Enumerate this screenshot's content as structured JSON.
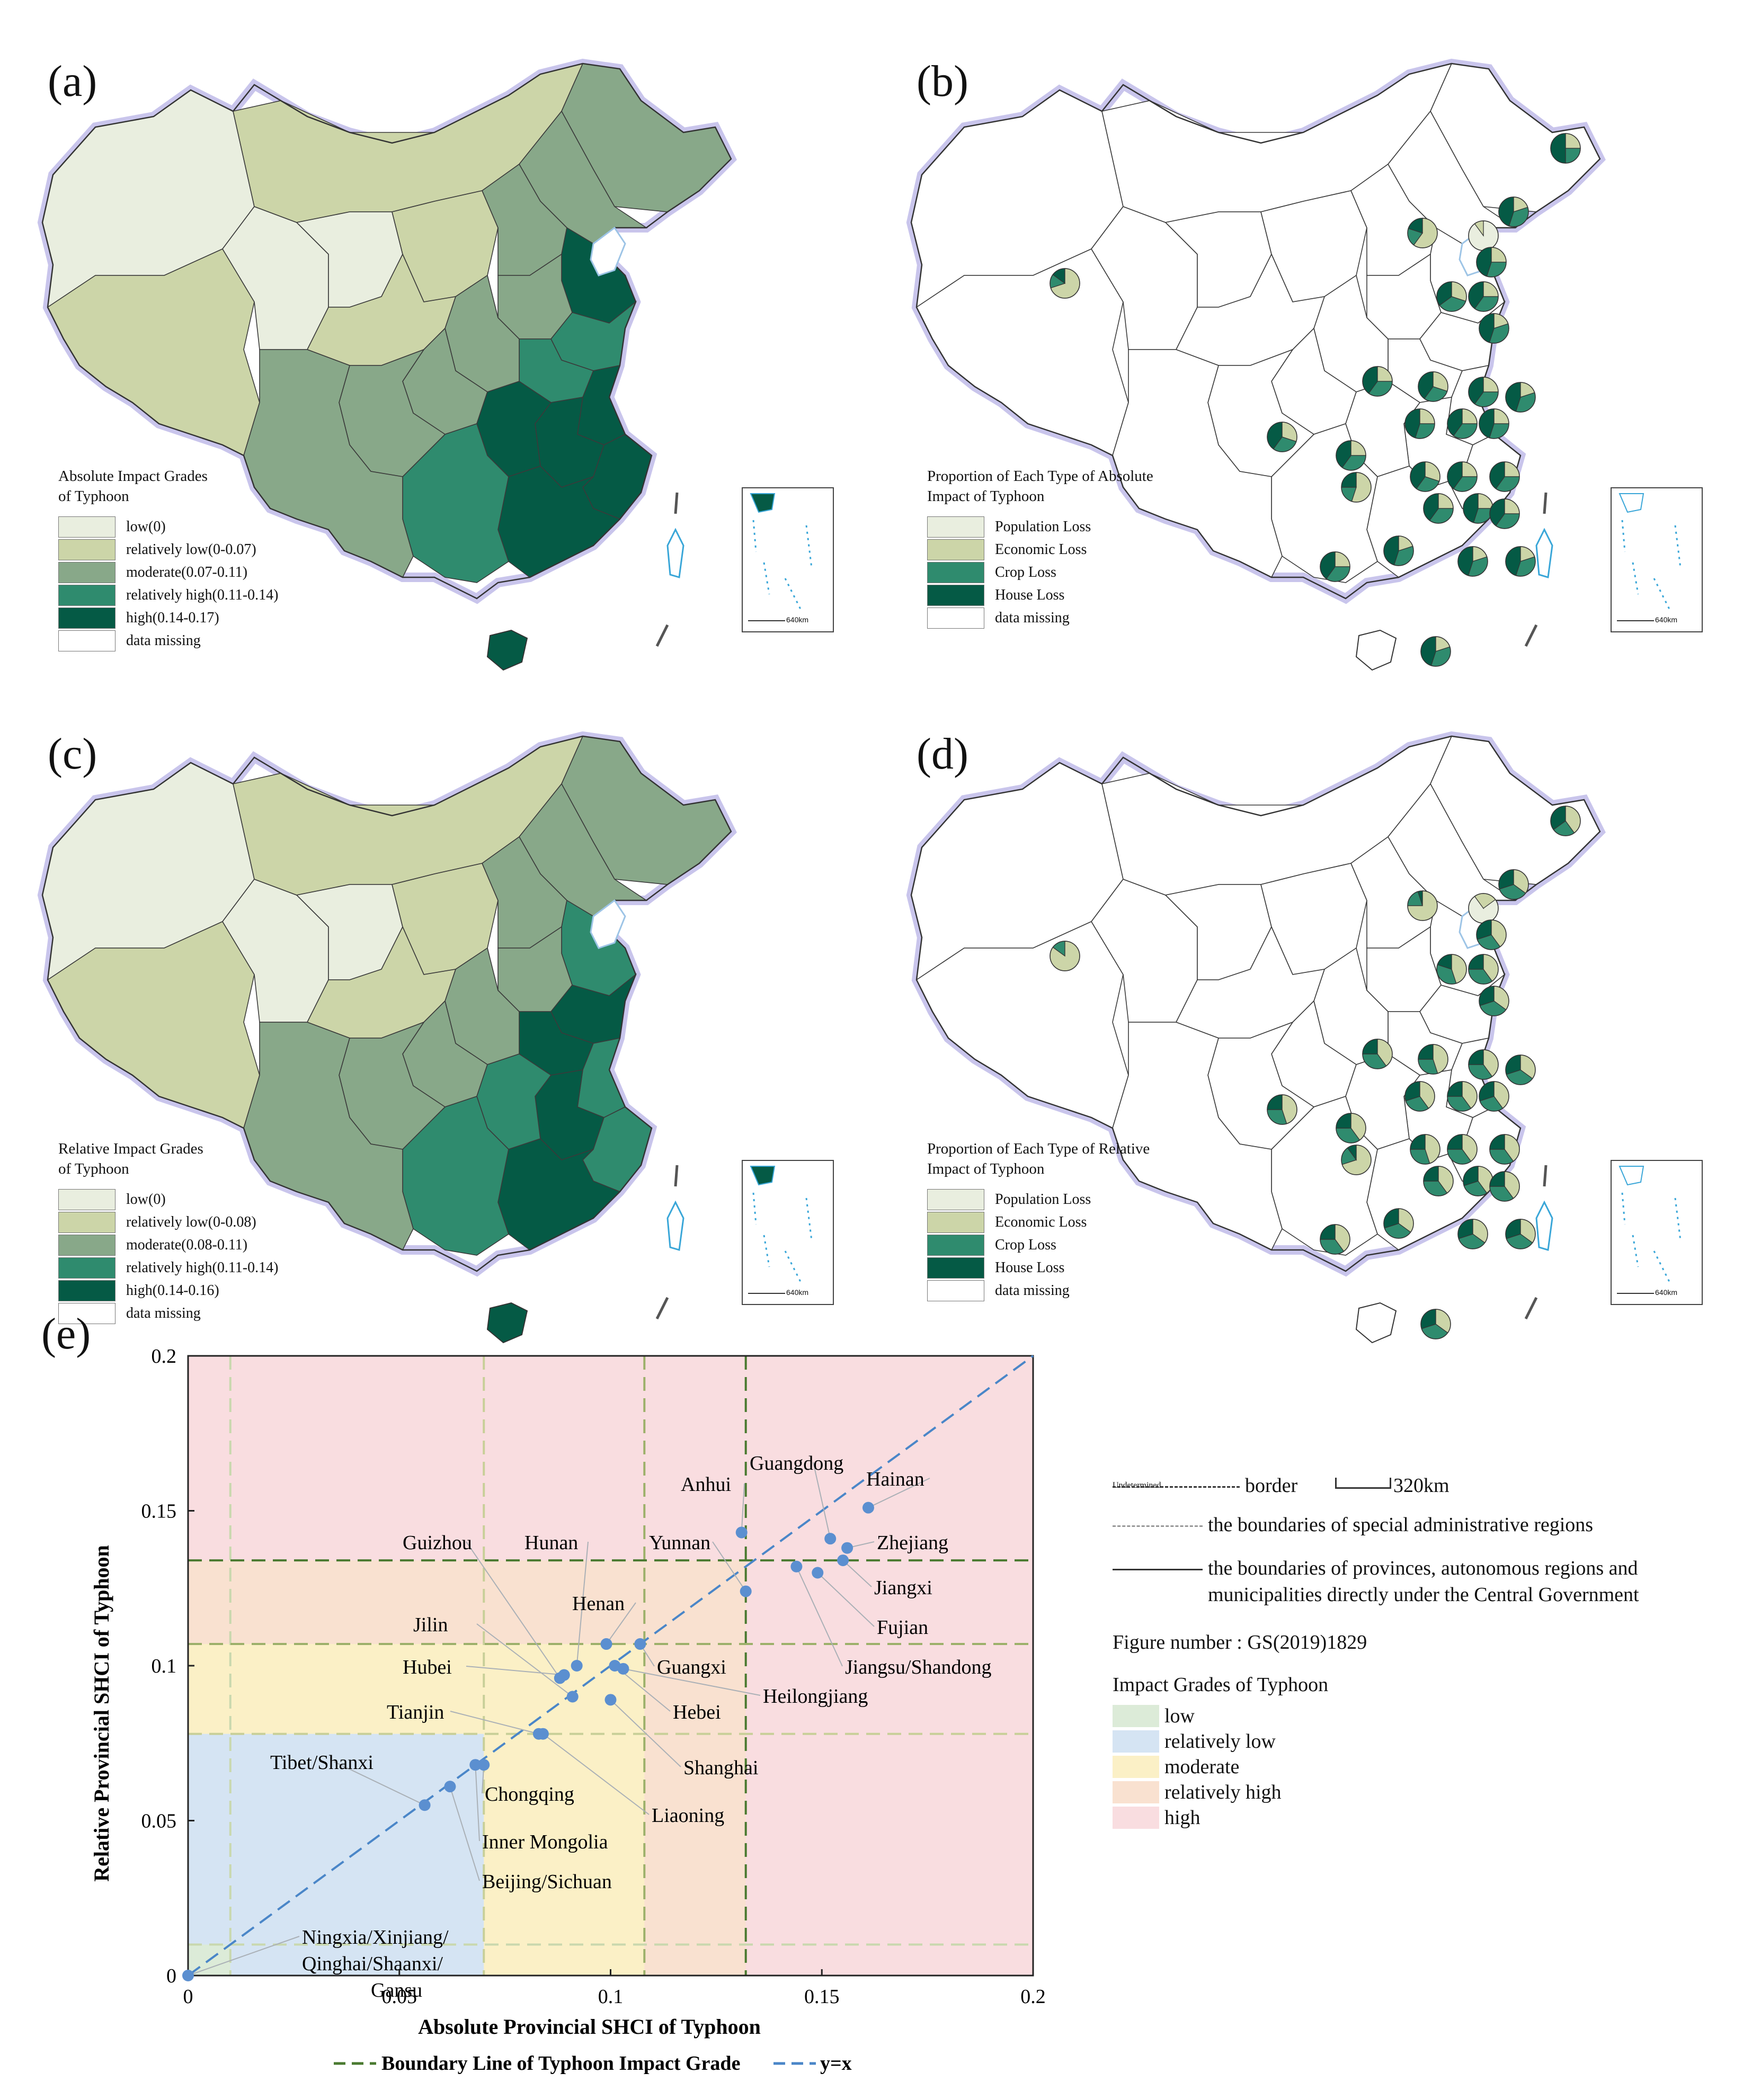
{
  "panels": {
    "a": {
      "label": "(a)",
      "legend_title": "Absolute Impact Grades\nof Typhoon",
      "legend": [
        {
          "label": "low(0)",
          "color": "#e9eedf"
        },
        {
          "label": "relatively low(0-0.07)",
          "color": "#ccd5a8"
        },
        {
          "label": "moderate(0.07-0.11)",
          "color": "#88a889"
        },
        {
          "label": "relatively high(0.11-0.14)",
          "color": "#2f8b6e"
        },
        {
          "label": "high(0.14-0.17)",
          "color": "#055a45"
        },
        {
          "label": "data missing",
          "color": "#ffffff"
        }
      ]
    },
    "b": {
      "label": "(b)",
      "legend_title": "Proportion of Each Type of Absolute\nImpact of Typhoon",
      "legend": [
        {
          "label": "Population Loss",
          "color": "#e9eedf"
        },
        {
          "label": "Economic Loss",
          "color": "#ccd5a8"
        },
        {
          "label": "Crop Loss",
          "color": "#2f8b6e"
        },
        {
          "label": "House Loss",
          "color": "#055a45"
        },
        {
          "label": "data missing",
          "color": "#ffffff"
        }
      ]
    },
    "c": {
      "label": "(c)",
      "legend_title": "Relative Impact Grades\nof Typhoon",
      "legend": [
        {
          "label": "low(0)",
          "color": "#e9eedf"
        },
        {
          "label": "relatively low(0-0.08)",
          "color": "#ccd5a8"
        },
        {
          "label": "moderate(0.08-0.11)",
          "color": "#88a889"
        },
        {
          "label": "relatively high(0.11-0.14)",
          "color": "#2f8b6e"
        },
        {
          "label": "high(0.14-0.16)",
          "color": "#055a45"
        },
        {
          "label": "data missing",
          "color": "#ffffff"
        }
      ]
    },
    "d": {
      "label": "(d)",
      "legend_title": "Proportion of Each Type of Relative\nImpact of Typhoon",
      "legend": [
        {
          "label": "Population Loss",
          "color": "#e9eedf"
        },
        {
          "label": "Economic Loss",
          "color": "#ccd5a8"
        },
        {
          "label": "Crop Loss",
          "color": "#2f8b6e"
        },
        {
          "label": "House Loss",
          "color": "#055a45"
        },
        {
          "label": "data missing",
          "color": "#ffffff"
        }
      ]
    },
    "e": {
      "label": "(e)"
    }
  },
  "inset_scale": "640km",
  "right_legend": {
    "border_undetermined": "Undetermined",
    "border_label": "border",
    "scale_label": "320km",
    "sar_label": "the boundaries of special administrative regions",
    "province_label": "the boundaries of provinces, autonomous regions and\nmunicipalities directly under the Central Government",
    "figure_number": "Figure number : GS(2019)1829",
    "grades_title": "Impact Grades of Typhoon",
    "grades": [
      {
        "label": "low",
        "color": "#dcebd8"
      },
      {
        "label": "relatively low",
        "color": "#d5e4f3"
      },
      {
        "label": "moderate",
        "color": "#fbf0c6"
      },
      {
        "label": "relatively high",
        "color": "#f9e1d0"
      },
      {
        "label": "high",
        "color": "#f9dde0"
      }
    ]
  },
  "chart_data": {
    "type": "scatter",
    "xlabel": "Absolute Provincial SHCI of Typhoon",
    "ylabel": "Relative Provincial SHCI of Typhoon",
    "xlim": [
      0,
      0.2
    ],
    "ylim": [
      0,
      0.2
    ],
    "xticks": [
      "0",
      "0.05",
      "0.1",
      "0.15",
      "0.2"
    ],
    "yticks": [
      "0",
      "0.05",
      "0.1",
      "0.15",
      "0.2"
    ],
    "x_boundaries": [
      0.01,
      0.07,
      0.108,
      0.132
    ],
    "y_boundaries": [
      0.01,
      0.078,
      0.107,
      0.134
    ],
    "legend": [
      {
        "label": "Boundary Line of Typhoon Impact Grade",
        "color": "#4a7a30"
      },
      {
        "label": "y=x",
        "color": "#4a86c8"
      }
    ],
    "point_color": "#5b8fd0",
    "points": [
      {
        "name": "Hainan",
        "x": 0.161,
        "y": 0.151
      },
      {
        "name": "Guangdong",
        "x": 0.152,
        "y": 0.141
      },
      {
        "name": "Zhejiang",
        "x": 0.156,
        "y": 0.138
      },
      {
        "name": "Jiangxi",
        "x": 0.155,
        "y": 0.134
      },
      {
        "name": "Fujian",
        "x": 0.149,
        "y": 0.13
      },
      {
        "name": "Jiangsu/Shandong",
        "x": 0.144,
        "y": 0.132
      },
      {
        "name": "Anhui",
        "x": 0.131,
        "y": 0.143
      },
      {
        "name": "Yunnan",
        "x": 0.132,
        "y": 0.124
      },
      {
        "name": "Guangxi",
        "x": 0.107,
        "y": 0.107
      },
      {
        "name": "Henan",
        "x": 0.099,
        "y": 0.107
      },
      {
        "name": "Heilongjiang",
        "x": 0.103,
        "y": 0.099
      },
      {
        "name": "Hebei",
        "x": 0.101,
        "y": 0.1
      },
      {
        "name": "Shanghai",
        "x": 0.1,
        "y": 0.089
      },
      {
        "name": "Hunan",
        "x": 0.092,
        "y": 0.1
      },
      {
        "name": "Guizhou",
        "x": 0.088,
        "y": 0.096
      },
      {
        "name": "Jilin",
        "x": 0.091,
        "y": 0.09
      },
      {
        "name": "Hubei",
        "x": 0.089,
        "y": 0.097
      },
      {
        "name": "Liaoning",
        "x": 0.084,
        "y": 0.078
      },
      {
        "name": "Tianjin",
        "x": 0.083,
        "y": 0.078
      },
      {
        "name": "Chongqing",
        "x": 0.07,
        "y": 0.068
      },
      {
        "name": "Inner Mongolia",
        "x": 0.068,
        "y": 0.068
      },
      {
        "name": "Beijing/Sichuan",
        "x": 0.062,
        "y": 0.061
      },
      {
        "name": "Tibet/Shanxi",
        "x": 0.056,
        "y": 0.055
      },
      {
        "name": "Ningxia/Xinjiang/Qinghai/Shaanxi/Gansu",
        "x": 0.0,
        "y": 0.0
      }
    ],
    "labels": [
      {
        "text": "Hainan"
      },
      {
        "text": "Guangdong"
      },
      {
        "text": "Zhejiang"
      },
      {
        "text": "Jiangxi"
      },
      {
        "text": "Fujian"
      },
      {
        "text": "Jiangsu/Shandong"
      },
      {
        "text": "Anhui"
      },
      {
        "text": "Yunnan"
      },
      {
        "text": "Guangxi"
      },
      {
        "text": "Henan"
      },
      {
        "text": "Heilongjiang"
      },
      {
        "text": "Hebei"
      },
      {
        "text": "Shanghai"
      },
      {
        "text": "Hunan"
      },
      {
        "text": "Guizhou"
      },
      {
        "text": "Jilin"
      },
      {
        "text": "Hubei"
      },
      {
        "text": "Liaoning"
      },
      {
        "text": "Tianjin"
      },
      {
        "text": "Chongqing"
      },
      {
        "text": "Inner Mongolia"
      },
      {
        "text": "Beijing/Sichuan"
      },
      {
        "text": "Tibet/Shanxi"
      },
      {
        "text": "Ningxia/Xinjiang/"
      },
      {
        "text": "Qinghai/Shaanxi/"
      },
      {
        "text": "Gansu"
      }
    ]
  }
}
